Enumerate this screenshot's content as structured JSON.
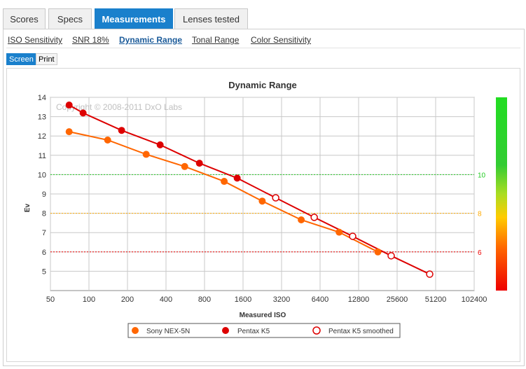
{
  "tabs": [
    {
      "label": "Scores",
      "active": false
    },
    {
      "label": "Specs",
      "active": false
    },
    {
      "label": "Measurements",
      "active": true
    },
    {
      "label": "Lenses tested",
      "active": false
    }
  ],
  "subtabs": [
    {
      "label": "ISO Sensitivity",
      "active": false
    },
    {
      "label": "SNR 18%",
      "active": false
    },
    {
      "label": "Dynamic Range",
      "active": true
    },
    {
      "label": "Tonal Range",
      "active": false
    },
    {
      "label": "Color Sensitivity",
      "active": false
    }
  ],
  "modes": {
    "screen": "Screen",
    "print": "Print"
  },
  "colors": {
    "accent": "#1a80cc",
    "sony": "#ff6600",
    "pentax": "#dd0000",
    "ref_green": "#22cc22",
    "ref_orange": "#ffaa00",
    "ref_red": "#ee0000"
  },
  "chart_data": {
    "type": "line",
    "title": "Dynamic Range",
    "watermark": "Copyright © 2008-2011 DxO Labs",
    "xlabel": "Measured ISO",
    "ylabel": "Ev",
    "x_scale": "log2",
    "xlim": [
      50,
      102400
    ],
    "ylim": [
      4,
      14
    ],
    "x_ticks": [
      50,
      100,
      200,
      400,
      800,
      1600,
      3200,
      6400,
      12800,
      25600,
      51200,
      102400
    ],
    "y_ticks": [
      5,
      6,
      7,
      8,
      9,
      10,
      11,
      12,
      13,
      14
    ],
    "grid": true,
    "reference_lines": [
      {
        "value": 10,
        "label": "10",
        "color": "#22cc22"
      },
      {
        "value": 8,
        "label": "8",
        "color": "#ffaa00"
      },
      {
        "value": 6,
        "label": "6",
        "color": "#ee0000"
      }
    ],
    "scale_bar": {
      "from_value": 4,
      "to_value": 14
    },
    "series": [
      {
        "name": "Sony NEX-5N",
        "color": "#ff6600",
        "marker": "filled",
        "points": [
          [
            70,
            12.22
          ],
          [
            140,
            11.79
          ],
          [
            280,
            11.05
          ],
          [
            560,
            10.42
          ],
          [
            1140,
            9.65
          ],
          [
            2260,
            8.63
          ],
          [
            4560,
            7.66
          ],
          [
            9020,
            7.02
          ],
          [
            18100,
            6.0
          ]
        ]
      },
      {
        "name": "Pentax K5",
        "color": "#dd0000",
        "marker": "filled",
        "points": [
          [
            70,
            13.6
          ],
          [
            90,
            13.19
          ],
          [
            180,
            12.29
          ],
          [
            360,
            11.54
          ],
          [
            730,
            10.59
          ],
          [
            1440,
            9.82
          ]
        ]
      },
      {
        "name": "Pentax K5 smoothed",
        "color": "#dd0000",
        "marker": "hollow",
        "points": [
          [
            2880,
            8.8
          ],
          [
            5760,
            7.79
          ],
          [
            11500,
            6.81
          ],
          [
            23000,
            5.8
          ],
          [
            46000,
            4.85
          ]
        ]
      }
    ],
    "legend": {
      "placement": "bottom-center"
    }
  }
}
